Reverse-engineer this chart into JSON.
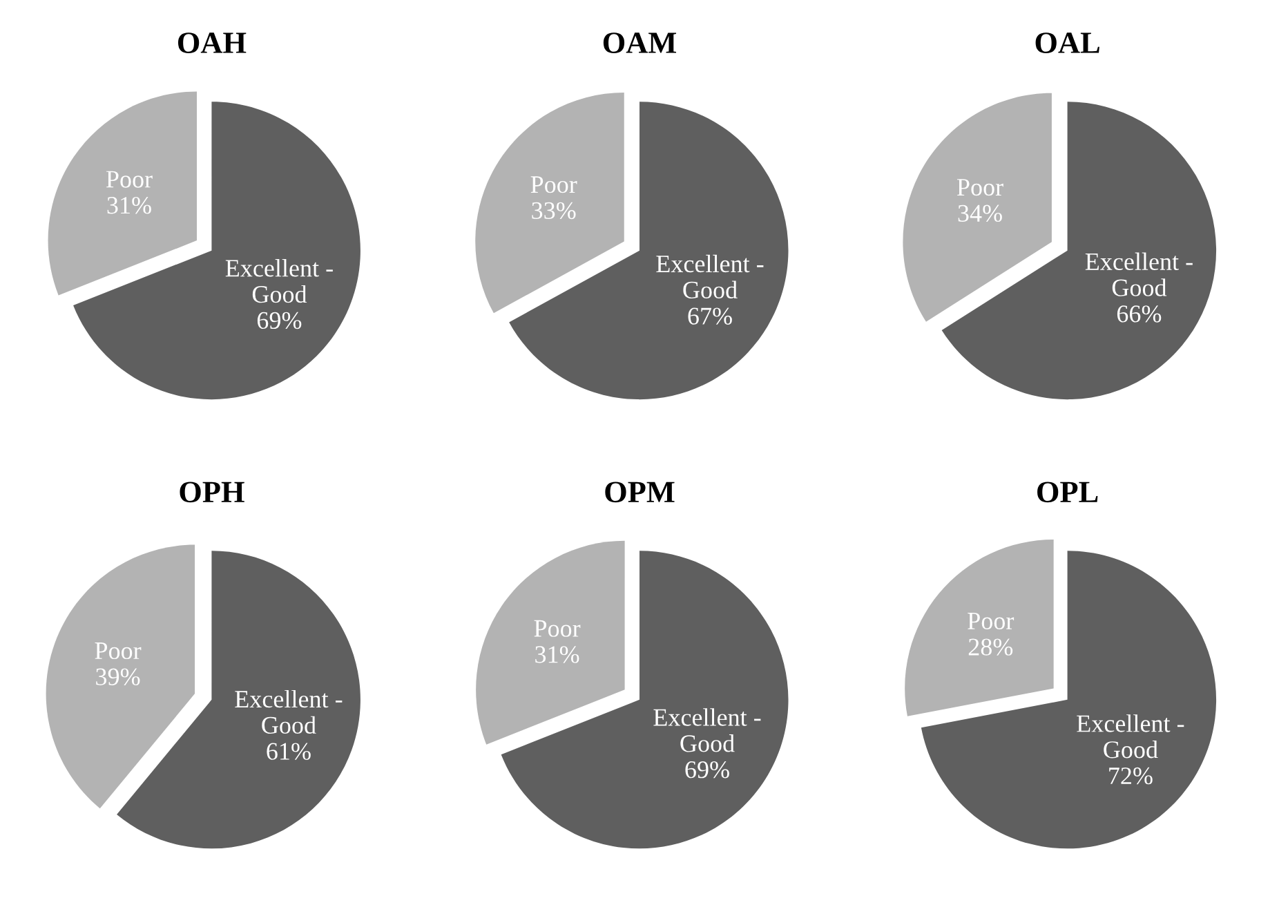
{
  "chart_data": [
    {
      "type": "pie",
      "title": "OAH",
      "categories": [
        "Poor",
        "Excellent - Good"
      ],
      "values": [
        31,
        69
      ],
      "value_labels": [
        "31%",
        "69%"
      ],
      "colors": [
        "#b3b3b3",
        "#5f5f5f"
      ]
    },
    {
      "type": "pie",
      "title": "OAM",
      "categories": [
        "Poor",
        "Excellent - Good"
      ],
      "values": [
        33,
        67
      ],
      "value_labels": [
        "33%",
        "67%"
      ],
      "colors": [
        "#b3b3b3",
        "#5f5f5f"
      ]
    },
    {
      "type": "pie",
      "title": "OAL",
      "categories": [
        "Poor",
        "Excellent - Good"
      ],
      "values": [
        34,
        66
      ],
      "value_labels": [
        "34%",
        "66%"
      ],
      "colors": [
        "#b3b3b3",
        "#5f5f5f"
      ]
    },
    {
      "type": "pie",
      "title": "OPH",
      "categories": [
        "Poor",
        "Excellent - Good"
      ],
      "values": [
        39,
        61
      ],
      "value_labels": [
        "39%",
        "61%"
      ],
      "colors": [
        "#b3b3b3",
        "#5f5f5f"
      ]
    },
    {
      "type": "pie",
      "title": "OPM",
      "categories": [
        "Poor",
        "Excellent - Good"
      ],
      "values": [
        31,
        69
      ],
      "value_labels": [
        "31%",
        "69%"
      ],
      "colors": [
        "#b3b3b3",
        "#5f5f5f"
      ]
    },
    {
      "type": "pie",
      "title": "OPL",
      "categories": [
        "Poor",
        "Excellent - Good"
      ],
      "values": [
        28,
        72
      ],
      "value_labels": [
        "28%",
        "72%"
      ],
      "colors": [
        "#b3b3b3",
        "#5f5f5f"
      ]
    }
  ]
}
